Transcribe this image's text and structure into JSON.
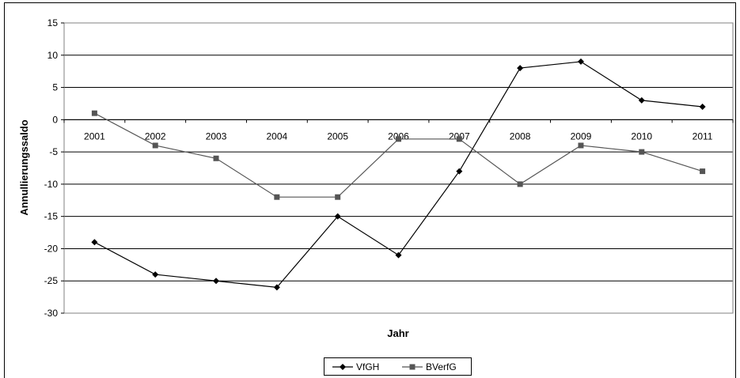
{
  "chart_data": {
    "type": "line",
    "title": "",
    "xlabel": "Jahr",
    "ylabel": "Annullierungssaldo",
    "ylim": [
      -30,
      15
    ],
    "yticks": [
      15,
      10,
      5,
      0,
      -5,
      -10,
      -15,
      -20,
      -25,
      -30
    ],
    "grid": "horizontal",
    "legend_position": "bottom",
    "categories": [
      "2001",
      "2002",
      "2003",
      "2004",
      "2005",
      "2006",
      "2007",
      "2008",
      "2009",
      "2010",
      "2011"
    ],
    "series": [
      {
        "name": "VfGH",
        "marker": "diamond",
        "color": "#000000",
        "values": [
          -19,
          -24,
          -25,
          -26,
          -15,
          -21,
          -8,
          8,
          9,
          3,
          2
        ]
      },
      {
        "name": "BVerfG",
        "marker": "square",
        "color": "#555555",
        "values": [
          1,
          -4,
          -6,
          -12,
          -12,
          -3,
          -3,
          -10,
          -4,
          -5,
          -8
        ]
      }
    ]
  }
}
